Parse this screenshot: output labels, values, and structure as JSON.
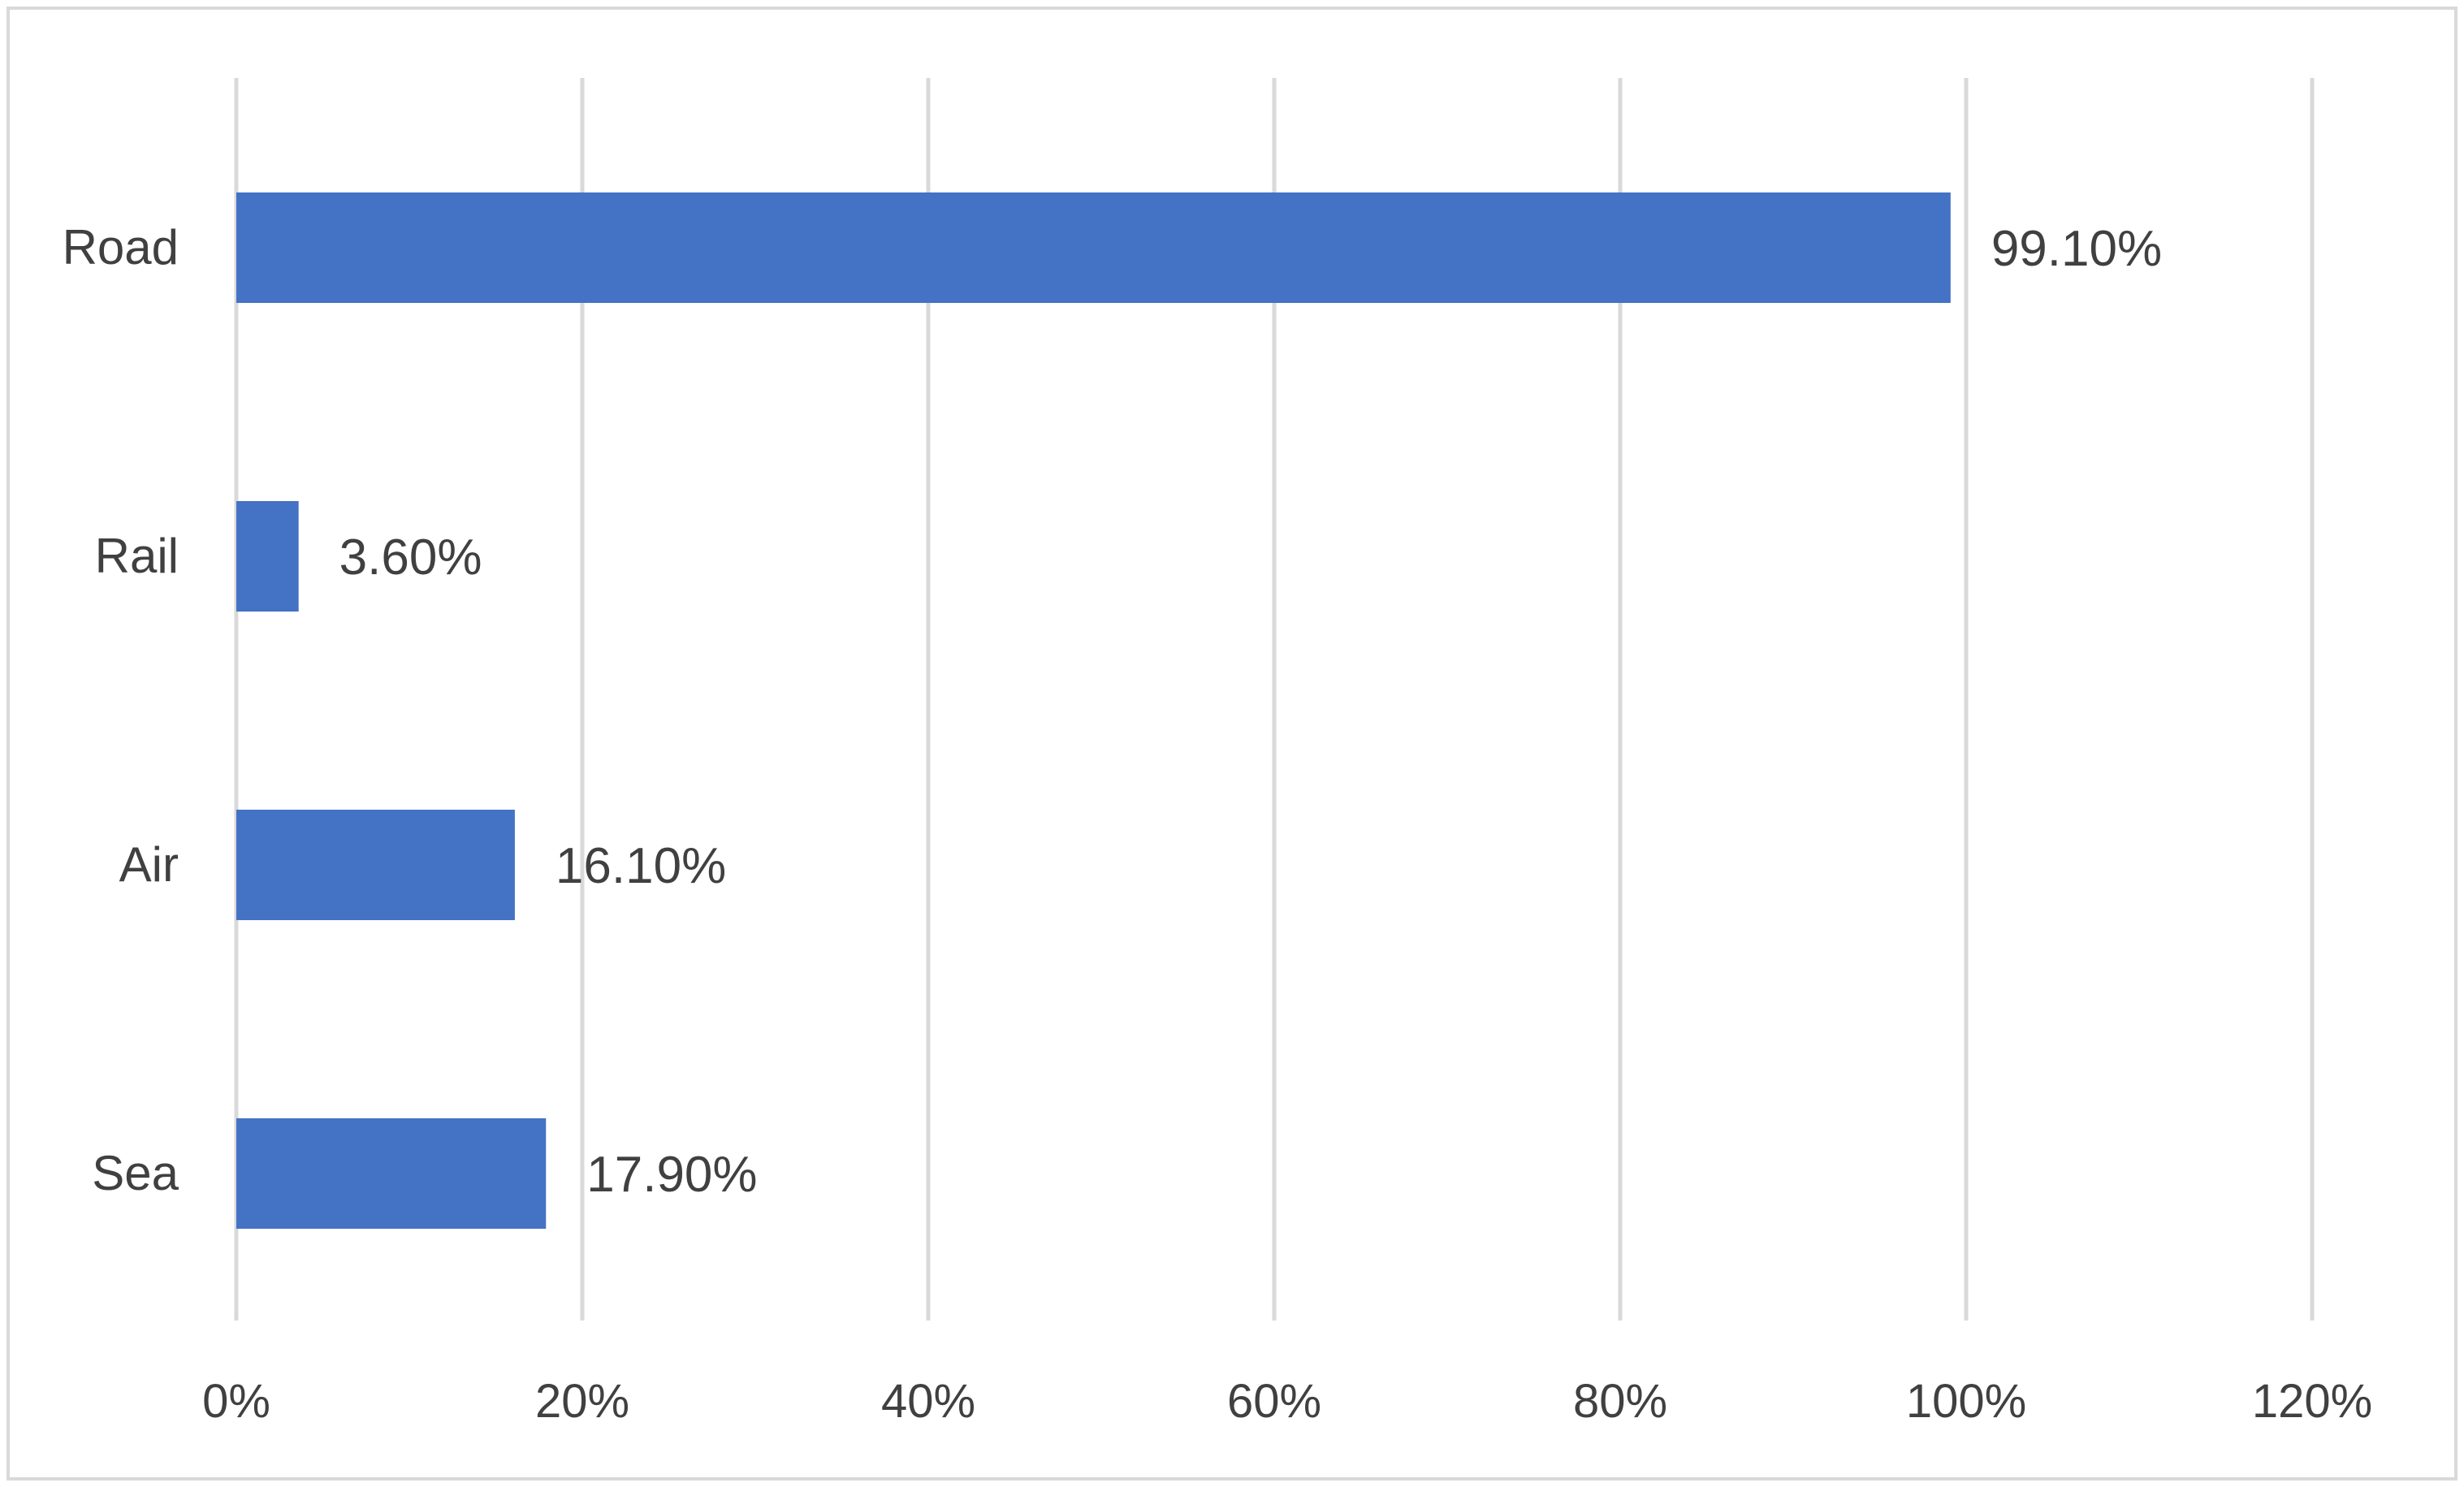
{
  "chart_data": {
    "type": "bar",
    "orientation": "horizontal",
    "categories": [
      "Road",
      "Rail",
      "Air",
      "Sea"
    ],
    "values": [
      99.1,
      3.6,
      16.1,
      17.9
    ],
    "data_labels": [
      "99.10%",
      "3.60%",
      "16.10%",
      "17.90%"
    ],
    "title": "",
    "xlabel": "",
    "ylabel": "",
    "xlim": [
      0,
      120
    ],
    "x_ticks": [
      0,
      20,
      40,
      60,
      80,
      100,
      120
    ],
    "x_tick_labels": [
      "0%",
      "20%",
      "40%",
      "60%",
      "80%",
      "100%",
      "120%"
    ],
    "grid": "vertical",
    "legend": "none",
    "bar_color": "#4472C4",
    "grid_color": "#D9D9D9",
    "text_color": "#404040",
    "border_color": "#D9D9D9"
  }
}
